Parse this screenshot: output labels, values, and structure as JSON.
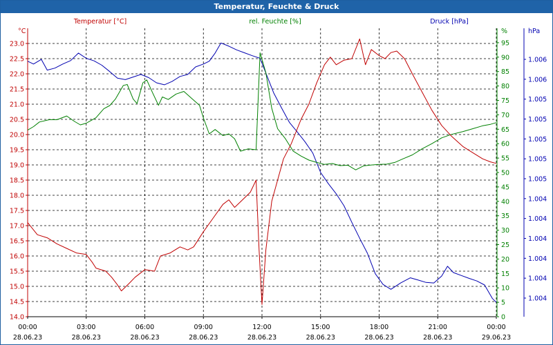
{
  "chart_data": {
    "type": "line",
    "title": "Temperatur, Feuchte & Druck",
    "series_labels": {
      "temperature": "Temperatur [°C]",
      "humidity": "rel. Feuchte [%]",
      "pressure": "Druck [hPa]"
    },
    "axis_units": {
      "left": "°C",
      "right1": "%",
      "right2": "hPa"
    },
    "colors": {
      "temperature": "#c00000",
      "humidity": "#008000",
      "pressure": "#0000b0",
      "title_bg": "#1f63a8",
      "grid": "#000000"
    },
    "x_range_hours": [
      0,
      24
    ],
    "x_ticks": [
      {
        "h": 0,
        "time": "00:00",
        "date": "28.06.23"
      },
      {
        "h": 3,
        "time": "03:00",
        "date": "28.06.23"
      },
      {
        "h": 6,
        "time": "06:00",
        "date": "28.06.23"
      },
      {
        "h": 9,
        "time": "09:00",
        "date": "28.06.23"
      },
      {
        "h": 12,
        "time": "12:00",
        "date": "28.06.23"
      },
      {
        "h": 15,
        "time": "15:00",
        "date": "28.06.23"
      },
      {
        "h": 18,
        "time": "18:00",
        "date": "28.06.23"
      },
      {
        "h": 21,
        "time": "21:00",
        "date": "28.06.23"
      },
      {
        "h": 24,
        "time": "00:00",
        "date": "29.06.23"
      }
    ],
    "temp_range": [
      14.0,
      23.5
    ],
    "temp_ticks": [
      "14.0",
      "14.5",
      "15.0",
      "15.5",
      "16.0",
      "16.5",
      "17.0",
      "17.5",
      "18.0",
      "18.5",
      "19.0",
      "19.5",
      "20.0",
      "20.5",
      "21.0",
      "21.5",
      "22.0",
      "22.5",
      "23.0"
    ],
    "hum_range": [
      0,
      100
    ],
    "hum_ticks": [
      "0",
      "5",
      "10",
      "15",
      "20",
      "25",
      "30",
      "35",
      "40",
      "45",
      "50",
      "55",
      "60",
      "65",
      "70",
      "75",
      "80",
      "85",
      "90",
      "95"
    ],
    "press_ticks": [
      "1.004",
      "1.004",
      "1.004",
      "1.004",
      "1.004",
      "1.004",
      "1.005",
      "1.005",
      "1.005",
      "1.005",
      "1.005",
      "1.006",
      "1.006"
    ],
    "temperature": [
      [
        0,
        17.1
      ],
      [
        0.5,
        16.7
      ],
      [
        1,
        16.6
      ],
      [
        1.5,
        16.4
      ],
      [
        2,
        16.25
      ],
      [
        2.5,
        16.1
      ],
      [
        3,
        16.05
      ],
      [
        3.3,
        15.8
      ],
      [
        3.5,
        15.6
      ],
      [
        4,
        15.5
      ],
      [
        4.3,
        15.3
      ],
      [
        4.6,
        15.05
      ],
      [
        4.8,
        14.85
      ],
      [
        5.2,
        15.1
      ],
      [
        5.5,
        15.3
      ],
      [
        6,
        15.55
      ],
      [
        6.5,
        15.5
      ],
      [
        6.8,
        16.0
      ],
      [
        7.3,
        16.1
      ],
      [
        7.8,
        16.3
      ],
      [
        8.2,
        16.2
      ],
      [
        8.5,
        16.3
      ],
      [
        9,
        16.8
      ],
      [
        9.5,
        17.25
      ],
      [
        10,
        17.7
      ],
      [
        10.3,
        17.85
      ],
      [
        10.6,
        17.6
      ],
      [
        11,
        17.85
      ],
      [
        11.4,
        18.1
      ],
      [
        11.7,
        18.5
      ],
      [
        11.85,
        16.2
      ],
      [
        12.0,
        14.4
      ],
      [
        12.2,
        16.2
      ],
      [
        12.5,
        17.8
      ],
      [
        12.8,
        18.5
      ],
      [
        13.1,
        19.2
      ],
      [
        13.5,
        19.7
      ],
      [
        14,
        20.5
      ],
      [
        14.4,
        21.0
      ],
      [
        14.8,
        21.7
      ],
      [
        15.2,
        22.3
      ],
      [
        15.5,
        22.55
      ],
      [
        15.8,
        22.3
      ],
      [
        16.2,
        22.45
      ],
      [
        16.6,
        22.5
      ],
      [
        17,
        23.15
      ],
      [
        17.3,
        22.3
      ],
      [
        17.6,
        22.8
      ],
      [
        18,
        22.6
      ],
      [
        18.3,
        22.5
      ],
      [
        18.6,
        22.7
      ],
      [
        18.9,
        22.75
      ],
      [
        19.3,
        22.5
      ],
      [
        19.7,
        22.0
      ],
      [
        20.2,
        21.4
      ],
      [
        20.7,
        20.8
      ],
      [
        21.2,
        20.3
      ],
      [
        21.7,
        19.95
      ],
      [
        22.3,
        19.6
      ],
      [
        22.8,
        19.4
      ],
      [
        23.3,
        19.2
      ],
      [
        23.7,
        19.1
      ],
      [
        24,
        19.05
      ]
    ],
    "humidity": [
      [
        0,
        64.7
      ],
      [
        0.3,
        65.9
      ],
      [
        0.6,
        67.5
      ],
      [
        1.1,
        68.3
      ],
      [
        1.5,
        68.3
      ],
      [
        2,
        69.6
      ],
      [
        2.4,
        67.7
      ],
      [
        2.7,
        66.5
      ],
      [
        3,
        67.1
      ],
      [
        3.5,
        69
      ],
      [
        3.9,
        72.1
      ],
      [
        4.2,
        73.2
      ],
      [
        4.5,
        75.5
      ],
      [
        4.9,
        80.2
      ],
      [
        5.1,
        80.5
      ],
      [
        5.4,
        75.5
      ],
      [
        5.6,
        73.9
      ],
      [
        5.9,
        81.1
      ],
      [
        6.1,
        82.1
      ],
      [
        6.4,
        77.6
      ],
      [
        6.7,
        73.3
      ],
      [
        6.9,
        76.2
      ],
      [
        7.2,
        75.3
      ],
      [
        7.6,
        77.2
      ],
      [
        8,
        78.1
      ],
      [
        8.4,
        75.7
      ],
      [
        8.8,
        73.3
      ],
      [
        9,
        68.9
      ],
      [
        9.3,
        63.4
      ],
      [
        9.6,
        64.9
      ],
      [
        10,
        62.8
      ],
      [
        10.3,
        63.4
      ],
      [
        10.6,
        61.7
      ],
      [
        10.9,
        57.4
      ],
      [
        11.3,
        58.2
      ],
      [
        11.7,
        57.9
      ],
      [
        11.9,
        91.5
      ],
      [
        12.2,
        84.6
      ],
      [
        12.5,
        72.3
      ],
      [
        12.8,
        65.2
      ],
      [
        13.2,
        61.7
      ],
      [
        13.6,
        57.4
      ],
      [
        14,
        55.7
      ],
      [
        14.4,
        54.3
      ],
      [
        14.8,
        53.5
      ],
      [
        15.2,
        52.8
      ],
      [
        15.6,
        53.1
      ],
      [
        16,
        52.4
      ],
      [
        16.4,
        52.5
      ],
      [
        16.8,
        50.9
      ],
      [
        17.2,
        52.3
      ],
      [
        17.6,
        52.6
      ],
      [
        18,
        52.8
      ],
      [
        18.4,
        52.9
      ],
      [
        18.8,
        53.5
      ],
      [
        19.2,
        54.7
      ],
      [
        19.7,
        56.1
      ],
      [
        20.2,
        58.2
      ],
      [
        20.7,
        60
      ],
      [
        21.2,
        62
      ],
      [
        21.7,
        63.2
      ],
      [
        22.3,
        64.2
      ],
      [
        22.8,
        65.2
      ],
      [
        23.3,
        66.2
      ],
      [
        23.7,
        66.7
      ],
      [
        24,
        67.3
      ]
    ],
    "pressure": [
      [
        0,
        88.6
      ],
      [
        0.3,
        87.6
      ],
      [
        0.7,
        89.2
      ],
      [
        1,
        85.5
      ],
      [
        1.4,
        86.2
      ],
      [
        1.8,
        87.6
      ],
      [
        2.2,
        88.8
      ],
      [
        2.6,
        91.4
      ],
      [
        3,
        89.6
      ],
      [
        3.4,
        88.7
      ],
      [
        3.8,
        87.2
      ],
      [
        4.2,
        85
      ],
      [
        4.6,
        82.7
      ],
      [
        5,
        82.2
      ],
      [
        5.4,
        83.1
      ],
      [
        5.8,
        84
      ],
      [
        6.2,
        82.9
      ],
      [
        6.6,
        81.1
      ],
      [
        7,
        80.4
      ],
      [
        7.4,
        81.6
      ],
      [
        7.8,
        83.3
      ],
      [
        8.2,
        84
      ],
      [
        8.6,
        86.6
      ],
      [
        9,
        87.6
      ],
      [
        9.3,
        88.6
      ],
      [
        9.6,
        91.4
      ],
      [
        9.9,
        94.9
      ],
      [
        10.3,
        93.8
      ],
      [
        10.7,
        92.5
      ],
      [
        11.1,
        91.5
      ],
      [
        11.5,
        90.5
      ],
      [
        11.9,
        89.6
      ],
      [
        12.2,
        84.5
      ],
      [
        12.6,
        77.6
      ],
      [
        13,
        72.4
      ],
      [
        13.4,
        67.4
      ],
      [
        13.8,
        64.1
      ],
      [
        14.2,
        60.7
      ],
      [
        14.6,
        56.8
      ],
      [
        15,
        50
      ],
      [
        15.4,
        46.1
      ],
      [
        15.8,
        42.6
      ],
      [
        16.2,
        38.5
      ],
      [
        16.6,
        32.7
      ],
      [
        17,
        27.2
      ],
      [
        17.4,
        22
      ],
      [
        17.8,
        14.9
      ],
      [
        18.2,
        11.2
      ],
      [
        18.6,
        9.5
      ],
      [
        19.1,
        11.7
      ],
      [
        19.6,
        13.5
      ],
      [
        20,
        12.7
      ],
      [
        20.4,
        11.9
      ],
      [
        20.8,
        11.7
      ],
      [
        21.2,
        14.1
      ],
      [
        21.5,
        17.5
      ],
      [
        21.8,
        15.3
      ],
      [
        22.2,
        14.3
      ],
      [
        22.6,
        13.3
      ],
      [
        23,
        12.4
      ],
      [
        23.4,
        11
      ],
      [
        23.8,
        6.3
      ],
      [
        24,
        5
      ]
    ]
  }
}
